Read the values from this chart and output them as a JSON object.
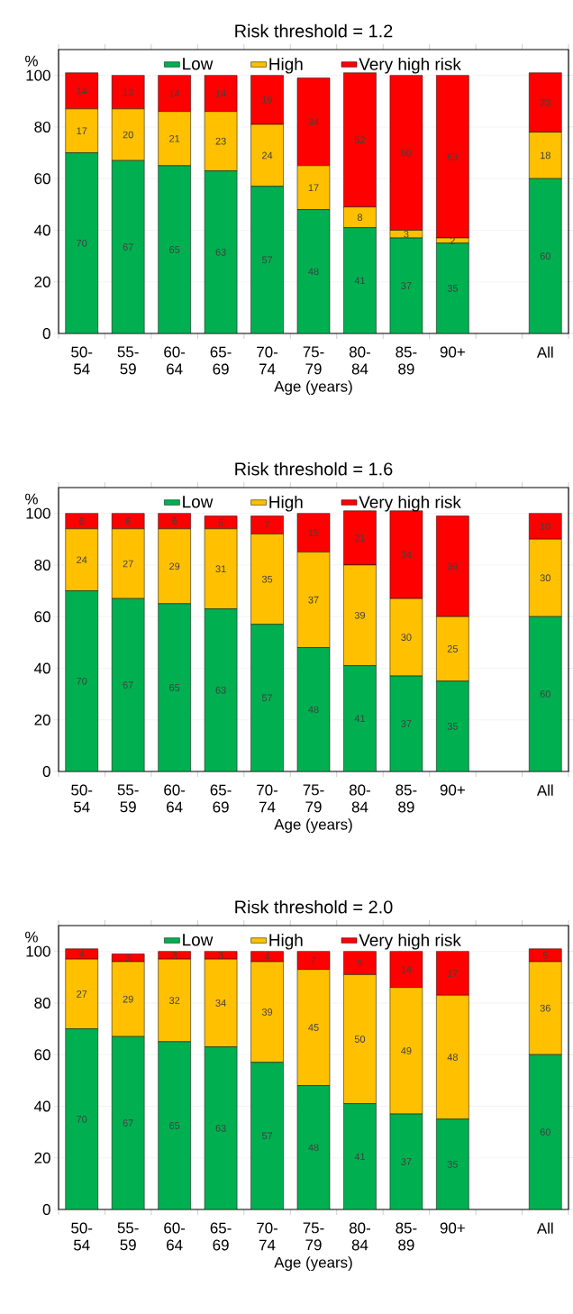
{
  "chart_data": [
    {
      "type": "bar",
      "stacked": true,
      "title": "Risk threshold = 1.2",
      "xlabel": "Age (years)",
      "ylabel": "%",
      "categories": [
        "50-54",
        "55-59",
        "60-64",
        "65-69",
        "70-74",
        "75-79",
        "80-84",
        "85-89",
        "90+",
        null,
        "All"
      ],
      "series": [
        {
          "name": "Low",
          "color": "#00b050",
          "values": [
            70,
            67,
            65,
            63,
            57,
            48,
            41,
            37,
            35,
            null,
            60
          ]
        },
        {
          "name": "High",
          "color": "#ffc000",
          "values": [
            17,
            20,
            21,
            23,
            24,
            17,
            8,
            3,
            2,
            null,
            18
          ]
        },
        {
          "name": "Very high risk",
          "color": "#ff0000",
          "values": [
            14,
            13,
            14,
            14,
            19,
            34,
            52,
            60,
            63,
            null,
            23
          ]
        }
      ],
      "ylim": [
        0,
        110
      ],
      "yticks": [
        0,
        20,
        40,
        60,
        80,
        100
      ],
      "grid": "y",
      "legend": "top",
      "data_labels": true
    },
    {
      "type": "bar",
      "stacked": true,
      "title": "Risk threshold = 1.6",
      "xlabel": "Age (years)",
      "ylabel": "%",
      "categories": [
        "50-54",
        "55-59",
        "60-64",
        "65-69",
        "70-74",
        "75-79",
        "80-84",
        "85-89",
        "90+",
        null,
        "All"
      ],
      "series": [
        {
          "name": "Low",
          "color": "#00b050",
          "values": [
            70,
            67,
            65,
            63,
            57,
            48,
            41,
            37,
            35,
            null,
            60
          ]
        },
        {
          "name": "High",
          "color": "#ffc000",
          "values": [
            24,
            27,
            29,
            31,
            35,
            37,
            39,
            30,
            25,
            null,
            30
          ]
        },
        {
          "name": "Very high risk",
          "color": "#ff0000",
          "values": [
            6,
            6,
            6,
            5,
            7,
            15,
            21,
            34,
            39,
            null,
            10
          ]
        }
      ],
      "ylim": [
        0,
        110
      ],
      "yticks": [
        0,
        20,
        40,
        60,
        80,
        100
      ],
      "grid": "y",
      "legend": "top",
      "data_labels": true
    },
    {
      "type": "bar",
      "stacked": true,
      "title": "Risk threshold = 2.0",
      "xlabel": "Age (years)",
      "ylabel": "%",
      "categories": [
        "50-54",
        "55-59",
        "60-64",
        "65-69",
        "70-74",
        "75-79",
        "80-84",
        "85-89",
        "90+",
        null,
        "All"
      ],
      "series": [
        {
          "name": "Low",
          "color": "#00b050",
          "values": [
            70,
            67,
            65,
            63,
            57,
            48,
            41,
            37,
            35,
            null,
            60
          ]
        },
        {
          "name": "High",
          "color": "#ffc000",
          "values": [
            27,
            29,
            32,
            34,
            39,
            45,
            50,
            49,
            48,
            null,
            36
          ]
        },
        {
          "name": "Very high risk",
          "color": "#ff0000",
          "values": [
            4,
            3,
            3,
            3,
            4,
            7,
            9,
            14,
            17,
            null,
            5
          ]
        }
      ],
      "ylim": [
        0,
        110
      ],
      "yticks": [
        0,
        20,
        40,
        60,
        80,
        100
      ],
      "grid": "y",
      "legend": "top",
      "data_labels": true
    }
  ]
}
